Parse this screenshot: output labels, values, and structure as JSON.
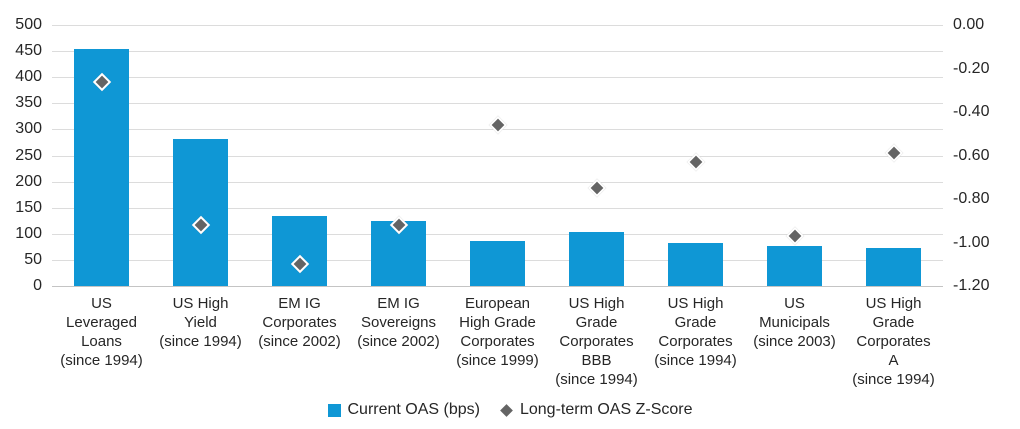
{
  "chart_data": {
    "type": "bar",
    "subtype": "bar-with-scatter-diamonds-dual-axis",
    "categories": [
      "US Leveraged Loans (since 1994)",
      "US High Yield (since 1994)",
      "EM IG Corporates (since 2002)",
      "EM IG Sovereigns (since 2002)",
      "European High Grade Corporates (since 1999)",
      "US High Grade Corporates BBB (since 1994)",
      "US High Grade Corporates (since 1994)",
      "US Municipals (since 2003)",
      "US High Grade Corporates A (since 1994)"
    ],
    "category_lines": [
      [
        "US",
        "Leveraged",
        "Loans",
        "(since 1994)"
      ],
      [
        "US High",
        "Yield",
        "(since 1994)"
      ],
      [
        "EM IG",
        "Corporates",
        "(since 2002)"
      ],
      [
        "EM IG",
        "Sovereigns",
        "(since 2002)"
      ],
      [
        "European",
        "High Grade",
        "Corporates",
        "(since 1999)"
      ],
      [
        "US High",
        "Grade",
        "Corporates",
        "BBB",
        "(since 1994)"
      ],
      [
        "US High",
        "Grade",
        "Corporates",
        "(since 1994)"
      ],
      [
        "US",
        "Municipals",
        "(since 2003)"
      ],
      [
        "US High",
        "Grade",
        "Corporates",
        "A",
        "(since 1994)"
      ]
    ],
    "series": [
      {
        "name": "Current OAS (bps)",
        "type": "bar",
        "axis": "left",
        "color": "#0f97d5",
        "values": [
          455,
          281,
          135,
          125,
          86,
          103,
          83,
          77,
          72
        ]
      },
      {
        "name": "Long-term OAS Z-Score",
        "type": "diamond",
        "axis": "right",
        "color": "#646464",
        "values": [
          -0.26,
          -0.92,
          -1.1,
          -0.92,
          -0.46,
          -0.75,
          -0.63,
          -0.97,
          -0.59
        ]
      }
    ],
    "left_axis": {
      "min": 0,
      "max": 500,
      "step": 50,
      "ticks": [
        "500",
        "450",
        "400",
        "350",
        "300",
        "250",
        "200",
        "150",
        "100",
        "50",
        "0"
      ]
    },
    "right_axis": {
      "min": -1.2,
      "max": 0.0,
      "step": 0.2,
      "ticks": [
        "0.00",
        "-0.20",
        "-0.40",
        "-0.60",
        "-0.80",
        "-1.00",
        "-1.20"
      ]
    },
    "grid": true,
    "legend_position": "bottom-center",
    "colors": {
      "bar": "#0f97d5",
      "diamond": "#646464",
      "diamond_border": "#ffffff",
      "gridline": "#dcdcdc",
      "baseline": "#c4c4c4",
      "text": "#262626"
    }
  }
}
